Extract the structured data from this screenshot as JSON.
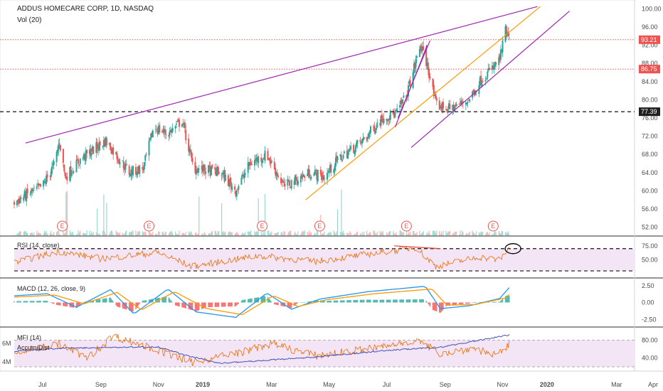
{
  "header": {
    "title": "ADDUS HOMECARE CORP, 1D, NASDAQ",
    "volume_label": "Vol (20)"
  },
  "colors": {
    "up": "#26a69a",
    "down": "#ef5350",
    "purple": "#9c27b0",
    "orange": "#ff9800",
    "red_line": "#e53935",
    "price_tag_red": "#ef5350",
    "price_tag_dark": "#202020",
    "macd_line": "#2196f3",
    "signal_line": "#ff9800",
    "rsi_line": "#ef6c00",
    "accum_line": "#3f51b5",
    "band_fill": "#f3e5f5"
  },
  "chart_data": [
    {
      "type": "candlestick",
      "name": "price",
      "x_range": [
        "2018-06-15",
        "2020-04-15"
      ],
      "ylim": [
        51,
        101
      ],
      "y_ticks": [
        "52.00",
        "56.00",
        "60.00",
        "64.00",
        "68.00",
        "72.00",
        "76.00",
        "80.00",
        "84.00",
        "88.00",
        "92.00",
        "96.00",
        "100.00"
      ],
      "x_tick_labels": [
        "Jul",
        "Sep",
        "Nov",
        "2019",
        "Mar",
        "May",
        "Jul",
        "Sep",
        "Nov",
        "2020",
        "Mar",
        "Apr"
      ],
      "anchors": [
        {
          "date": "2018-06-15",
          "value": 57.5
        },
        {
          "date": "2018-07-15",
          "value": 61
        },
        {
          "date": "2018-07-28",
          "value": 66
        },
        {
          "date": "2018-08-02",
          "value": 71
        },
        {
          "date": "2018-08-08",
          "value": 63
        },
        {
          "date": "2018-08-25",
          "value": 67
        },
        {
          "date": "2018-09-20",
          "value": 71
        },
        {
          "date": "2018-10-15",
          "value": 64
        },
        {
          "date": "2018-10-30",
          "value": 65
        },
        {
          "date": "2018-11-10",
          "value": 74
        },
        {
          "date": "2018-11-25",
          "value": 72.5
        },
        {
          "date": "2018-12-10",
          "value": 75.5
        },
        {
          "date": "2018-12-22",
          "value": 65
        },
        {
          "date": "2019-01-20",
          "value": 64
        },
        {
          "date": "2019-02-05",
          "value": 60
        },
        {
          "date": "2019-02-20",
          "value": 66
        },
        {
          "date": "2019-03-10",
          "value": 68
        },
        {
          "date": "2019-03-28",
          "value": 61
        },
        {
          "date": "2019-04-25",
          "value": 64
        },
        {
          "date": "2019-05-10",
          "value": 63
        },
        {
          "date": "2019-05-25",
          "value": 67
        },
        {
          "date": "2019-06-20",
          "value": 71
        },
        {
          "date": "2019-07-10",
          "value": 76
        },
        {
          "date": "2019-07-25",
          "value": 77
        },
        {
          "date": "2019-08-05",
          "value": 81
        },
        {
          "date": "2019-08-20",
          "value": 92
        },
        {
          "date": "2019-08-28",
          "value": 87
        },
        {
          "date": "2019-09-05",
          "value": 79
        },
        {
          "date": "2019-09-20",
          "value": 78
        },
        {
          "date": "2019-10-10",
          "value": 80
        },
        {
          "date": "2019-10-25",
          "value": 85
        },
        {
          "date": "2019-11-05",
          "value": 87
        },
        {
          "date": "2019-11-12",
          "value": 89
        },
        {
          "date": "2019-11-18",
          "value": 95
        },
        {
          "date": "2019-11-22",
          "value": 93.2
        }
      ],
      "price_lines": [
        {
          "value": 93.21,
          "label": "93.21",
          "style": "dotted-red"
        },
        {
          "value": 86.75,
          "label": "86.75",
          "style": "dotted-red"
        },
        {
          "value": 77.39,
          "label": "77.39",
          "style": "dashed-black"
        }
      ],
      "trend_lines": [
        {
          "color": "purple",
          "from": {
            "date": "2018-06-27",
            "value": 70.5
          },
          "to": {
            "date": "2019-12-22",
            "value": 100.5
          }
        },
        {
          "color": "purple",
          "from": {
            "date": "2019-08-10",
            "value": 69.5
          },
          "to": {
            "date": "2020-01-25",
            "value": 99.5
          }
        },
        {
          "color": "orange",
          "from": {
            "date": "2019-04-20",
            "value": 58
          },
          "to": {
            "date": "2019-12-25",
            "value": 100.5
          }
        },
        {
          "color": "purple",
          "from": {
            "date": "2019-07-24",
            "value": 74
          },
          "to": {
            "date": "2019-08-27",
            "value": 92
          }
        },
        {
          "color": "purple",
          "from": {
            "date": "2019-07-27",
            "value": 76
          },
          "to": {
            "date": "2019-08-30",
            "value": 93
          }
        }
      ],
      "earnings_markers": [
        {
          "date": "2018-08-05",
          "label": "E"
        },
        {
          "date": "2018-11-05",
          "label": "E"
        },
        {
          "date": "2019-03-05",
          "label": "E"
        },
        {
          "date": "2019-05-05",
          "label": "E"
        },
        {
          "date": "2019-08-05",
          "label": "E"
        },
        {
          "date": "2019-11-05",
          "label": "E"
        }
      ]
    },
    {
      "type": "line",
      "name": "rsi",
      "label": "RSI (14, close)",
      "ylim": [
        25,
        85
      ],
      "y_ticks": [
        "75.00",
        "50.00"
      ],
      "band": [
        30,
        70
      ],
      "dashed_levels": [
        70,
        30
      ],
      "anchors": [
        {
          "date": "2018-06-15",
          "value": 45
        },
        {
          "date": "2018-08-01",
          "value": 65
        },
        {
          "date": "2018-09-15",
          "value": 52
        },
        {
          "date": "2018-11-15",
          "value": 63
        },
        {
          "date": "2018-12-20",
          "value": 38
        },
        {
          "date": "2019-03-01",
          "value": 57
        },
        {
          "date": "2019-05-01",
          "value": 47
        },
        {
          "date": "2019-08-15",
          "value": 72
        },
        {
          "date": "2019-09-05",
          "value": 38
        },
        {
          "date": "2019-10-20",
          "value": 55
        },
        {
          "date": "2019-11-12",
          "value": 50
        },
        {
          "date": "2019-11-22",
          "value": 71
        }
      ],
      "annotations": [
        {
          "type": "divergence-line",
          "from": {
            "date": "2019-07-23",
            "value": 75
          },
          "to": {
            "date": "2019-09-10",
            "value": 70
          }
        },
        {
          "type": "ellipse",
          "center": {
            "date": "2019-11-26",
            "value": 70
          }
        }
      ]
    },
    {
      "type": "macd",
      "name": "macd",
      "label": "MACD (12, 26, close, 9)",
      "ylim": [
        -3,
        3
      ],
      "y_ticks": [
        "2.50",
        "0.00",
        "-2.50"
      ],
      "macd_anchors": [
        {
          "date": "2018-06-15",
          "value": 1.0
        },
        {
          "date": "2018-07-20",
          "value": 1.3
        },
        {
          "date": "2018-08-20",
          "value": -0.7
        },
        {
          "date": "2018-09-25",
          "value": 1.9
        },
        {
          "date": "2018-10-20",
          "value": -1.7
        },
        {
          "date": "2018-11-25",
          "value": 2.0
        },
        {
          "date": "2018-12-25",
          "value": -1.4
        },
        {
          "date": "2019-02-05",
          "value": -2.2
        },
        {
          "date": "2019-03-10",
          "value": 1.4
        },
        {
          "date": "2019-04-05",
          "value": -1.0
        },
        {
          "date": "2019-05-05",
          "value": 0.5
        },
        {
          "date": "2019-06-25",
          "value": 1.6
        },
        {
          "date": "2019-08-25",
          "value": 2.4
        },
        {
          "date": "2019-09-10",
          "value": -0.9
        },
        {
          "date": "2019-10-10",
          "value": -0.5
        },
        {
          "date": "2019-11-12",
          "value": 0.6
        },
        {
          "date": "2019-11-22",
          "value": 2.2
        }
      ],
      "signal_anchors": [
        {
          "date": "2018-06-15",
          "value": 0.8
        },
        {
          "date": "2018-07-28",
          "value": 1.1
        },
        {
          "date": "2018-08-28",
          "value": -0.2
        },
        {
          "date": "2018-10-02",
          "value": 1.5
        },
        {
          "date": "2018-10-28",
          "value": -1.1
        },
        {
          "date": "2018-12-02",
          "value": 1.6
        },
        {
          "date": "2019-01-05",
          "value": -0.9
        },
        {
          "date": "2019-02-12",
          "value": -1.8
        },
        {
          "date": "2019-03-17",
          "value": 1.0
        },
        {
          "date": "2019-04-12",
          "value": -0.6
        },
        {
          "date": "2019-05-12",
          "value": 0.4
        },
        {
          "date": "2019-07-02",
          "value": 1.3
        },
        {
          "date": "2019-09-01",
          "value": 2.0
        },
        {
          "date": "2019-09-17",
          "value": -0.4
        },
        {
          "date": "2019-10-17",
          "value": -0.3
        },
        {
          "date": "2019-11-19",
          "value": 0.7
        },
        {
          "date": "2019-11-22",
          "value": 1.2
        }
      ]
    },
    {
      "type": "line",
      "name": "mfi",
      "label": "MFI (14)",
      "secondary_label": "Accum/Dist",
      "ylim": [
        20,
        100
      ],
      "y_ticks": [
        "80.00",
        "40.00"
      ],
      "left_ticks": [
        "6M",
        "4M"
      ],
      "band": [
        20,
        80
      ],
      "mfi_anchors": [
        {
          "date": "2018-06-15",
          "value": 50
        },
        {
          "date": "2018-08-01",
          "value": 72
        },
        {
          "date": "2018-09-01",
          "value": 40
        },
        {
          "date": "2018-09-28",
          "value": 90
        },
        {
          "date": "2018-11-10",
          "value": 60
        },
        {
          "date": "2018-12-20",
          "value": 30
        },
        {
          "date": "2019-02-15",
          "value": 55
        },
        {
          "date": "2019-03-15",
          "value": 72
        },
        {
          "date": "2019-05-01",
          "value": 45
        },
        {
          "date": "2019-07-15",
          "value": 66
        },
        {
          "date": "2019-08-15",
          "value": 80
        },
        {
          "date": "2019-09-10",
          "value": 50
        },
        {
          "date": "2019-10-15",
          "value": 62
        },
        {
          "date": "2019-11-10",
          "value": 45
        },
        {
          "date": "2019-11-22",
          "value": 70
        }
      ],
      "accum_anchors": [
        {
          "date": "2018-06-15",
          "value": 55
        },
        {
          "date": "2018-08-01",
          "value": 62
        },
        {
          "date": "2018-11-15",
          "value": 65
        },
        {
          "date": "2018-12-15",
          "value": 45
        },
        {
          "date": "2019-01-20",
          "value": 28
        },
        {
          "date": "2019-05-01",
          "value": 42
        },
        {
          "date": "2019-07-15",
          "value": 57
        },
        {
          "date": "2019-09-10",
          "value": 64
        },
        {
          "date": "2019-11-22",
          "value": 92
        }
      ]
    }
  ]
}
